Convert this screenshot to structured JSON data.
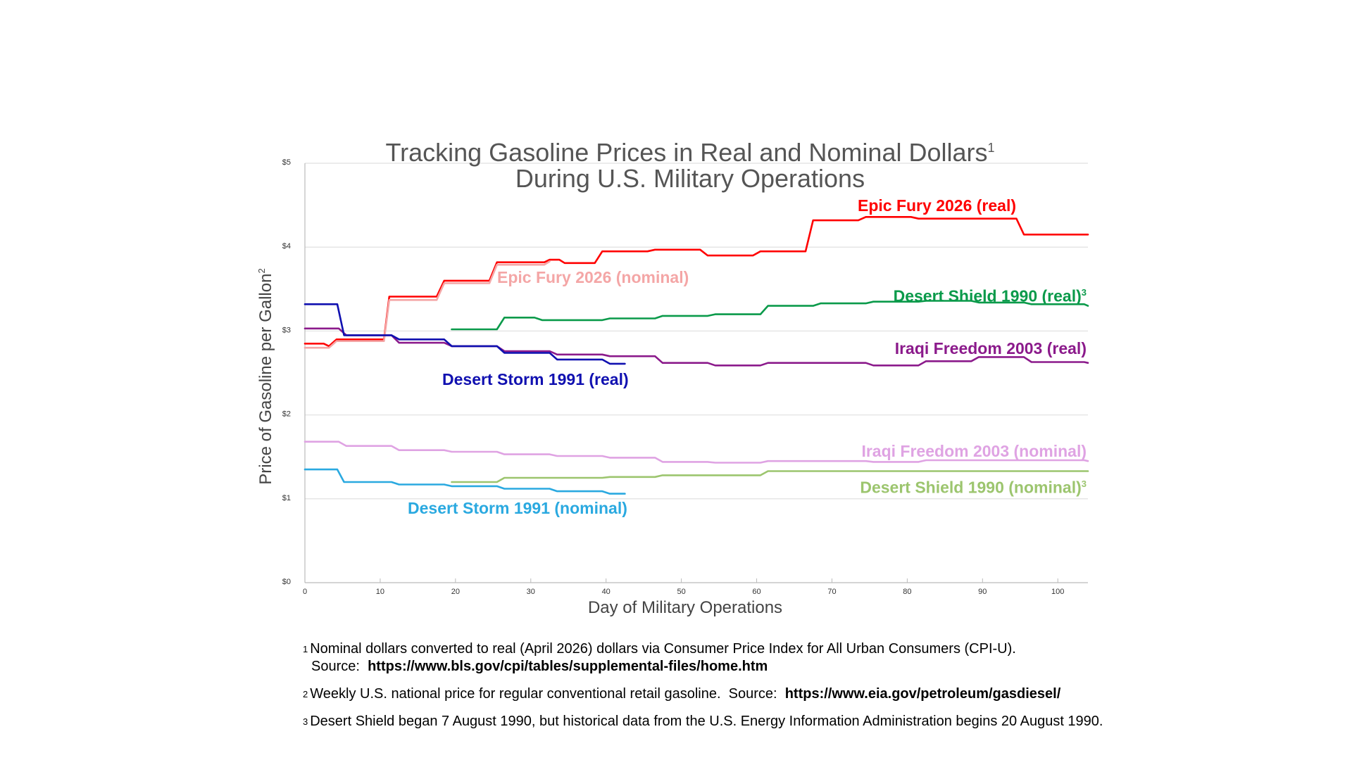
{
  "chart_data": {
    "type": "line",
    "title_line1": "Tracking Gasoline Prices in Real and Nominal Dollars",
    "title_sup": "1",
    "title_line2": "During U.S. Military Operations",
    "xlabel": "Day of Military Operations",
    "ylabel": "Price of Gasoline per Gallon",
    "ylabel_sup": "2",
    "xlim": [
      0,
      104
    ],
    "ylim": [
      0,
      5
    ],
    "x_ticks": [
      0,
      10,
      20,
      30,
      40,
      50,
      60,
      70,
      80,
      90,
      100
    ],
    "y_ticks": [
      {
        "value": 0,
        "label": "$0"
      },
      {
        "value": 1,
        "label": "$1"
      },
      {
        "value": 2,
        "label": "$2"
      },
      {
        "value": 3,
        "label": "$3"
      },
      {
        "value": 4,
        "label": "$4"
      },
      {
        "value": 5,
        "label": "$5"
      }
    ],
    "grid": true,
    "series": [
      {
        "name": "Epic Fury 2026 (real)",
        "color": "#ff0000",
        "points": [
          [
            0,
            2.85
          ],
          [
            2.5,
            2.85
          ],
          [
            3.2,
            2.82
          ],
          [
            4.2,
            2.9
          ],
          [
            10.5,
            2.9
          ],
          [
            11.2,
            3.41
          ],
          [
            17.5,
            3.41
          ],
          [
            18.5,
            3.6
          ],
          [
            24.5,
            3.6
          ],
          [
            25.5,
            3.82
          ],
          [
            31.8,
            3.82
          ],
          [
            32.5,
            3.85
          ],
          [
            33.8,
            3.85
          ],
          [
            34.5,
            3.81
          ],
          [
            38.5,
            3.81
          ],
          [
            39.5,
            3.95
          ],
          [
            45.5,
            3.95
          ],
          [
            46.5,
            3.97
          ],
          [
            52.5,
            3.97
          ],
          [
            53.5,
            3.9
          ],
          [
            59.5,
            3.9
          ],
          [
            60.5,
            3.95
          ],
          [
            66.5,
            3.95
          ],
          [
            67.5,
            4.32
          ],
          [
            73.5,
            4.32
          ],
          [
            74.5,
            4.36
          ],
          [
            80.5,
            4.36
          ],
          [
            81.5,
            4.34
          ],
          [
            94.5,
            4.34
          ],
          [
            95.5,
            4.15
          ],
          [
            104,
            4.15
          ]
        ]
      },
      {
        "name": "Epic Fury 2026 (nominal)",
        "color": "#f4a6a6",
        "points": [
          [
            0,
            2.8
          ],
          [
            3.2,
            2.8
          ],
          [
            4.2,
            2.88
          ],
          [
            10.5,
            2.88
          ],
          [
            11.2,
            3.37
          ],
          [
            17.5,
            3.37
          ],
          [
            18.5,
            3.57
          ],
          [
            24.5,
            3.57
          ],
          [
            25.5,
            3.79
          ],
          [
            31.8,
            3.79
          ],
          [
            32.5,
            3.83
          ]
        ]
      },
      {
        "name": "Desert Shield 1990 (real)",
        "color": "#0a9a4a",
        "sup": "3",
        "points": [
          [
            19.5,
            3.02
          ],
          [
            25.5,
            3.02
          ],
          [
            26.5,
            3.16
          ],
          [
            30.5,
            3.16
          ],
          [
            31.5,
            3.13
          ],
          [
            39.5,
            3.13
          ],
          [
            40.5,
            3.15
          ],
          [
            46.5,
            3.15
          ],
          [
            47.5,
            3.18
          ],
          [
            53.5,
            3.18
          ],
          [
            54.5,
            3.2
          ],
          [
            60.5,
            3.2
          ],
          [
            61.5,
            3.3
          ],
          [
            67.5,
            3.3
          ],
          [
            68.5,
            3.33
          ],
          [
            74.5,
            3.33
          ],
          [
            75.5,
            3.35
          ],
          [
            81.5,
            3.35
          ],
          [
            82.5,
            3.36
          ],
          [
            88.5,
            3.36
          ],
          [
            89.5,
            3.34
          ],
          [
            95.5,
            3.34
          ],
          [
            96.5,
            3.32
          ],
          [
            103.5,
            3.32
          ],
          [
            104,
            3.3
          ]
        ]
      },
      {
        "name": "Desert Shield 1990 (nominal)",
        "color": "#9cc56e",
        "sup": "3",
        "points": [
          [
            19.5,
            1.2
          ],
          [
            25.5,
            1.2
          ],
          [
            26.5,
            1.25
          ],
          [
            39.5,
            1.25
          ],
          [
            40.5,
            1.26
          ],
          [
            46.5,
            1.26
          ],
          [
            47.5,
            1.28
          ],
          [
            60.5,
            1.28
          ],
          [
            61.5,
            1.33
          ],
          [
            104,
            1.33
          ]
        ]
      },
      {
        "name": "Iraqi Freedom 2003 (real)",
        "color": "#8b1a8b",
        "points": [
          [
            0,
            3.03
          ],
          [
            4.5,
            3.03
          ],
          [
            5.5,
            2.95
          ],
          [
            11.5,
            2.95
          ],
          [
            12.5,
            2.86
          ],
          [
            18.5,
            2.86
          ],
          [
            19.5,
            2.82
          ],
          [
            25.5,
            2.82
          ],
          [
            26.5,
            2.76
          ],
          [
            32.5,
            2.76
          ],
          [
            33.5,
            2.72
          ],
          [
            39.5,
            2.72
          ],
          [
            40.5,
            2.7
          ],
          [
            46.5,
            2.7
          ],
          [
            47.5,
            2.62
          ],
          [
            53.5,
            2.62
          ],
          [
            54.5,
            2.59
          ],
          [
            60.5,
            2.59
          ],
          [
            61.5,
            2.62
          ],
          [
            74.5,
            2.62
          ],
          [
            75.5,
            2.59
          ],
          [
            81.5,
            2.59
          ],
          [
            82.5,
            2.64
          ],
          [
            88.5,
            2.64
          ],
          [
            89.5,
            2.69
          ],
          [
            95.5,
            2.69
          ],
          [
            96.5,
            2.63
          ],
          [
            103.5,
            2.63
          ],
          [
            104,
            2.62
          ]
        ]
      },
      {
        "name": "Iraqi Freedom 2003 (nominal)",
        "color": "#dfa3e3",
        "points": [
          [
            0,
            1.68
          ],
          [
            4.5,
            1.68
          ],
          [
            5.5,
            1.63
          ],
          [
            11.5,
            1.63
          ],
          [
            12.5,
            1.58
          ],
          [
            18.5,
            1.58
          ],
          [
            19.5,
            1.56
          ],
          [
            25.5,
            1.56
          ],
          [
            26.5,
            1.53
          ],
          [
            32.5,
            1.53
          ],
          [
            33.5,
            1.51
          ],
          [
            39.5,
            1.51
          ],
          [
            40.5,
            1.49
          ],
          [
            46.5,
            1.49
          ],
          [
            47.5,
            1.44
          ],
          [
            53.5,
            1.44
          ],
          [
            54.5,
            1.43
          ],
          [
            60.5,
            1.43
          ],
          [
            61.5,
            1.45
          ],
          [
            74.5,
            1.45
          ],
          [
            75.5,
            1.44
          ],
          [
            81.5,
            1.44
          ],
          [
            82.5,
            1.46
          ],
          [
            103.5,
            1.46
          ],
          [
            104,
            1.45
          ]
        ]
      },
      {
        "name": "Desert Storm 1991 (real)",
        "color": "#1010b0",
        "points": [
          [
            0,
            3.32
          ],
          [
            4.3,
            3.32
          ],
          [
            5.2,
            2.95
          ],
          [
            11.5,
            2.95
          ],
          [
            12.5,
            2.9
          ],
          [
            18.5,
            2.9
          ],
          [
            19.5,
            2.82
          ],
          [
            25.5,
            2.82
          ],
          [
            26.5,
            2.74
          ],
          [
            32.5,
            2.74
          ],
          [
            33.5,
            2.66
          ],
          [
            39.5,
            2.66
          ],
          [
            40.5,
            2.61
          ],
          [
            42.5,
            2.61
          ]
        ]
      },
      {
        "name": "Desert Storm 1991 (nominal)",
        "color": "#2aa9e0",
        "points": [
          [
            0,
            1.35
          ],
          [
            4.3,
            1.35
          ],
          [
            5.2,
            1.2
          ],
          [
            11.5,
            1.2
          ],
          [
            12.5,
            1.17
          ],
          [
            18.5,
            1.17
          ],
          [
            19.5,
            1.15
          ],
          [
            25.5,
            1.15
          ],
          [
            26.5,
            1.12
          ],
          [
            32.5,
            1.12
          ],
          [
            33.5,
            1.09
          ],
          [
            39.5,
            1.09
          ],
          [
            40.5,
            1.06
          ],
          [
            42.5,
            1.06
          ]
        ]
      }
    ]
  },
  "footnotes": [
    {
      "num": "1",
      "text": "Nominal dollars converted to real (April 2026) dollars via Consumer Price Index for All Urban Consumers (CPI-U).",
      "source_label": "Source:",
      "source_url": "https://www.bls.gov/cpi/tables/supplemental-files/home.htm"
    },
    {
      "num": "2",
      "text": "Weekly U.S. national price for regular conventional retail gasoline.",
      "source_label": "Source:",
      "source_url": "https://www.eia.gov/petroleum/gasdiesel/"
    },
    {
      "num": "3",
      "text": "Desert Shield began 7 August 1990, but historical data from the U.S. Energy Information Administration begins 20 August 1990."
    }
  ]
}
